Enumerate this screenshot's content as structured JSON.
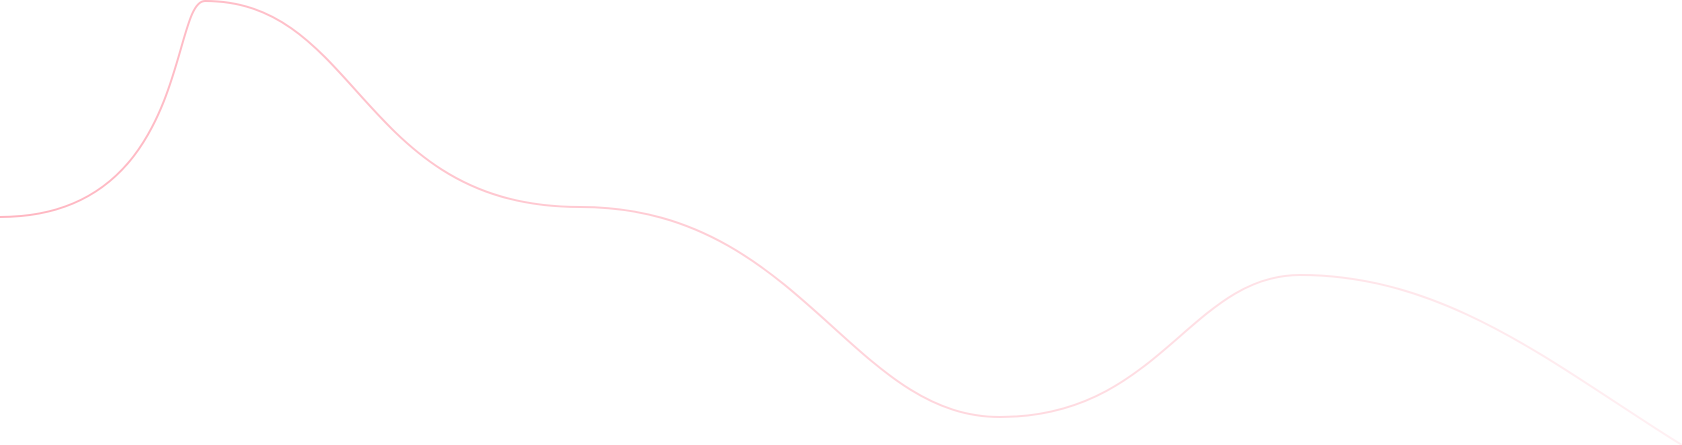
{
  "decoration": {
    "shape": "wave-line",
    "colors": {
      "start": "#ffb6c1",
      "end": "#fff0f3"
    }
  }
}
